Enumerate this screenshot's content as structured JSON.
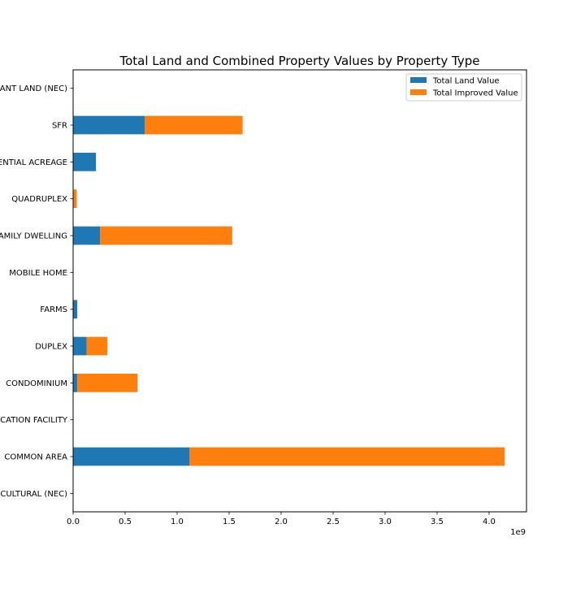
{
  "chart_data": {
    "type": "bar",
    "orientation": "horizontal",
    "stacked": true,
    "title": "Total Land and Combined Property Values by Property Type",
    "xlabel": "",
    "ylabel": "",
    "x_offset_label": "1e9",
    "x_scale_factor": 1000000000.0,
    "xlim": [
      0,
      4360000000.0
    ],
    "x_ticks": [
      0,
      500000000.0,
      1000000000.0,
      1500000000.0,
      2000000000.0,
      2500000000.0,
      3000000000.0,
      3500000000.0,
      4000000000.0
    ],
    "x_tick_labels": [
      "0.0",
      "0.5",
      "1.0",
      "1.5",
      "2.0",
      "2.5",
      "3.0",
      "3.5",
      "4.0"
    ],
    "grid": false,
    "legend_position": "top-right",
    "categories": [
      "VACANT LAND (NEC)",
      "SFR",
      "RESIDENTIAL ACREAGE",
      "QUADRUPLEX",
      "MULTI-FAMILY DWELLING",
      "MOBILE HOME",
      "FARMS",
      "DUPLEX",
      "CONDOMINIUM",
      "COMMUNICATION FACILITY",
      "COMMON AREA",
      "AGRICULTURAL (NEC)"
    ],
    "series": [
      {
        "name": "Total Land Value",
        "color": "#1f77b4",
        "values": [
          0,
          690000000.0,
          220000000.0,
          5000000.0,
          260000000.0,
          0,
          40000000.0,
          130000000.0,
          40000000.0,
          0,
          1120000000.0,
          0
        ]
      },
      {
        "name": "Total Improved Value",
        "color": "#ff7f0e",
        "values": [
          0,
          940000000.0,
          0,
          30000000.0,
          1270000000.0,
          0,
          0,
          200000000.0,
          580000000.0,
          0,
          3030000000.0,
          0
        ]
      }
    ]
  }
}
